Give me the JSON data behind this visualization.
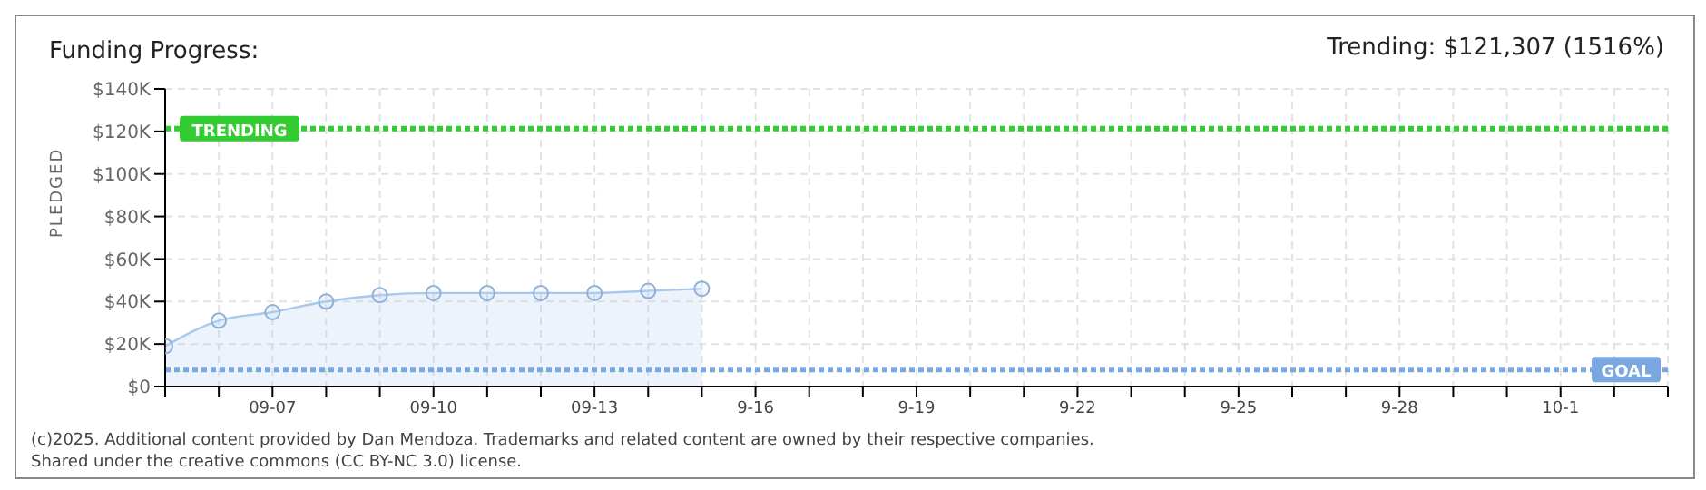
{
  "chart_data": {
    "type": "area",
    "title": "Funding Progress:",
    "subtitle": "Trending: $121,307 (1516%)",
    "ylabel": "PLEDGED",
    "categories": [
      null,
      null,
      "09-07",
      null,
      null,
      "09-10",
      null,
      null,
      "09-13",
      null,
      null,
      "9-16",
      null,
      null,
      "9-19",
      null,
      null,
      "9-22",
      null,
      null,
      "9-25",
      null,
      null,
      "9-28",
      null,
      null,
      "10-1",
      null,
      null
    ],
    "series": [
      {
        "color": "#a9c8ee",
        "values": [
          19000,
          31000,
          35000,
          40000,
          43000,
          44000,
          44000,
          44000,
          44000,
          45000,
          46000,
          null,
          null,
          null,
          null,
          null,
          null,
          null,
          null,
          null,
          null,
          null,
          null,
          null,
          null,
          null,
          null,
          null,
          null
        ]
      }
    ],
    "marker": "circle",
    "grid": true,
    "ylim": [
      0,
      140000
    ],
    "yticks": [
      {
        "value": 0,
        "label": "$0"
      },
      {
        "value": 20000,
        "label": "$20K"
      },
      {
        "value": 40000,
        "label": "$40K"
      },
      {
        "value": 60000,
        "label": "$60K"
      },
      {
        "value": 80000,
        "label": "$80K"
      },
      {
        "value": 100000,
        "label": "$100K"
      },
      {
        "value": 120000,
        "label": "$120K"
      },
      {
        "value": 140000,
        "label": "$140K"
      }
    ],
    "ref_lines": [
      {
        "axis": "y",
        "value": 121307,
        "label": "TRENDING",
        "color": "#33cc33",
        "line_style": "dotted"
      },
      {
        "axis": "y",
        "value": 8000,
        "label": "GOAL",
        "color": "#7aa7e0",
        "line_style": "dotted"
      }
    ],
    "annotations": [
      "(c)2025. Additional content provided by Dan Mendoza. Trademarks and related content are owned by their respective companies.",
      "Shared under the creative commons (CC BY-NC 3.0) license."
    ]
  }
}
